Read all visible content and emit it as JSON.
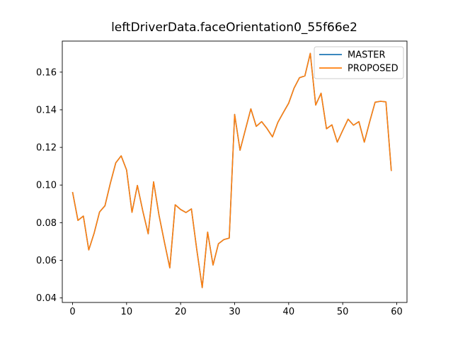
{
  "chart_data": {
    "type": "line",
    "title": "leftDriverData.faceOrientation0_55f66e2",
    "xlabel": "",
    "ylabel": "",
    "xlim": [
      -1.9,
      61.9
    ],
    "ylim": [
      0.0376,
      0.1765
    ],
    "x_ticks": [
      0,
      10,
      20,
      30,
      40,
      50,
      60
    ],
    "y_ticks": [
      0.04,
      0.06,
      0.08,
      0.1,
      0.12,
      0.14,
      0.16
    ],
    "grid": false,
    "legend_position": "upper right",
    "x": [
      0,
      1,
      2,
      3,
      4,
      5,
      6,
      7,
      8,
      9,
      10,
      11,
      12,
      13,
      14,
      15,
      16,
      17,
      18,
      19,
      20,
      21,
      22,
      23,
      24,
      25,
      26,
      27,
      28,
      29,
      30,
      31,
      32,
      33,
      34,
      35,
      36,
      37,
      38,
      39,
      40,
      41,
      42,
      43,
      44,
      45,
      46,
      47,
      48,
      49,
      50,
      51,
      52,
      53,
      54,
      55,
      56,
      57,
      58,
      59
    ],
    "series": [
      {
        "name": "MASTER",
        "color": "#1f77b4",
        "values": [
          0.0963,
          0.0812,
          0.0835,
          0.0655,
          0.0745,
          0.0857,
          0.089,
          0.101,
          0.1118,
          0.1155,
          0.108,
          0.0855,
          0.0998,
          0.0862,
          0.0741,
          0.1017,
          0.084,
          0.0697,
          0.056,
          0.0895,
          0.087,
          0.0854,
          0.0873,
          0.0655,
          0.0455,
          0.075,
          0.0575,
          0.0688,
          0.071,
          0.0718,
          0.1375,
          0.1185,
          0.1295,
          0.1405,
          0.1312,
          0.1337,
          0.13,
          0.1256,
          0.1333,
          0.1385,
          0.1435,
          0.1515,
          0.157,
          0.158,
          0.17,
          0.1425,
          0.1488,
          0.1299,
          0.132,
          0.1228,
          0.129,
          0.135,
          0.1318,
          0.1337,
          0.1228,
          0.1337,
          0.144,
          0.1445,
          0.1442,
          0.1075
        ]
      },
      {
        "name": "PROPOSED",
        "color": "#ff7f0e",
        "values": [
          0.0963,
          0.0812,
          0.0835,
          0.0655,
          0.0745,
          0.0857,
          0.089,
          0.101,
          0.1118,
          0.1155,
          0.108,
          0.0855,
          0.0998,
          0.0862,
          0.0741,
          0.1017,
          0.084,
          0.0697,
          0.056,
          0.0895,
          0.087,
          0.0854,
          0.0873,
          0.0655,
          0.0455,
          0.075,
          0.0575,
          0.0688,
          0.071,
          0.0718,
          0.1375,
          0.1185,
          0.1295,
          0.1405,
          0.1312,
          0.1337,
          0.13,
          0.1256,
          0.1333,
          0.1385,
          0.1435,
          0.1515,
          0.157,
          0.158,
          0.17,
          0.1425,
          0.1488,
          0.1299,
          0.132,
          0.1228,
          0.129,
          0.135,
          0.1318,
          0.1337,
          0.1228,
          0.1337,
          0.144,
          0.1445,
          0.1442,
          0.1075
        ]
      }
    ]
  },
  "colors": {
    "master_line": "#1f77b4",
    "proposed_line": "#ff7f0e",
    "spine": "#000000",
    "legend_border": "#cccccc",
    "background": "#ffffff"
  }
}
